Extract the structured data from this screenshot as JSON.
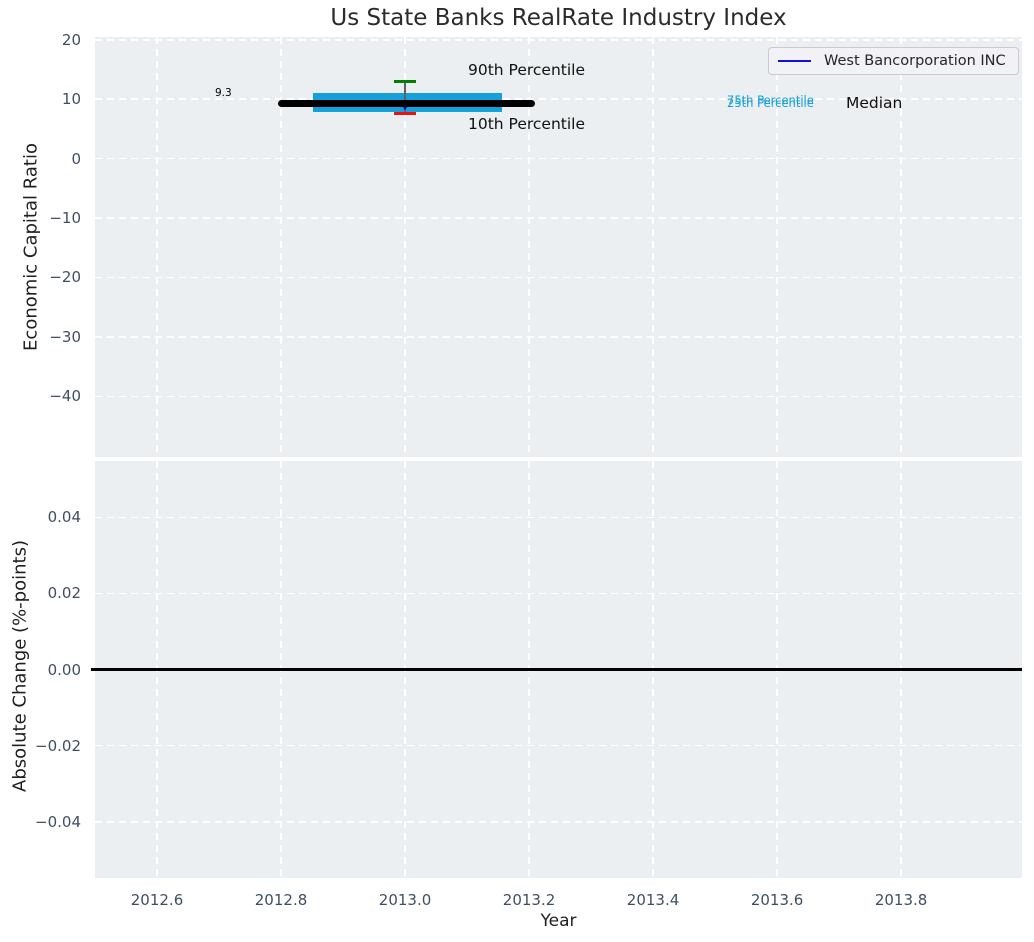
{
  "title": "Us State Banks RealRate Industry Index",
  "legend": {
    "label": "West Bancorporation INC"
  },
  "annotations": {
    "p90": "90th Percentile",
    "p10": "10th Percentile",
    "p75": "75th Percentile",
    "p25": "25th Percentile",
    "median": "Median",
    "value_label": "9.3"
  },
  "colors": {
    "axes_background": "#eceff1",
    "grid": "#ffffff",
    "box_fill": "#14a0da",
    "median_line": "#000000",
    "p90_cap": "#008000",
    "p10_cap": "#ee1111",
    "whisker": "#5f6368",
    "company_marker": "#0000ee",
    "legend_line": "#1111dd",
    "percentile_text": "#14a0da",
    "zero_line": "#000000",
    "tick_text": "#3f4f62"
  },
  "chart_data": {
    "type": "boxplot",
    "title": "Us State Banks RealRate Industry Index",
    "xlabel": "Year",
    "xlim": [
      2012.5,
      2013.995
    ],
    "xticks": [
      2012.6,
      2012.8,
      2013.0,
      2013.2,
      2013.4,
      2013.6,
      2013.8
    ],
    "xtick_labels": [
      "2012.6",
      "2012.8",
      "2013.0",
      "2013.2",
      "2013.4",
      "2013.6",
      "2013.8"
    ],
    "grid": true,
    "legend": {
      "position": "upper right",
      "entries": [
        "West Bancorporation INC"
      ]
    },
    "panels": [
      {
        "ylabel": "Economic Capital Ratio",
        "ylim": [
          -50.2,
          20.45
        ],
        "yticks": [
          20,
          10,
          0,
          -10,
          -20,
          -30,
          -40
        ],
        "ytick_labels": [
          "20",
          "10",
          "0",
          "−10",
          "−20",
          "−30",
          "−40"
        ],
        "box": {
          "year": 2013.0,
          "p90": 13.0,
          "p75": 11.1,
          "median": 9.3,
          "p25": 7.75,
          "p10": 7.5,
          "median_span_years": [
            2012.795,
            2013.21
          ],
          "box_span_years": [
            2012.852,
            2013.156
          ],
          "cap_halfwidth_years": 0.018
        },
        "company_point": {
          "year": 2013.0,
          "value": 9.3,
          "label": "9.3",
          "series": "West Bancorporation INC"
        }
      },
      {
        "ylabel": "Absolute Change (%-points)",
        "ylim": [
          -0.0548,
          0.0548
        ],
        "yticks": [
          0.04,
          0.02,
          0.0,
          -0.02,
          -0.04
        ],
        "ytick_labels": [
          "0.04",
          "0.02",
          "0.00",
          "−0.02",
          "−0.04"
        ],
        "zero_line": 0.0
      }
    ]
  }
}
